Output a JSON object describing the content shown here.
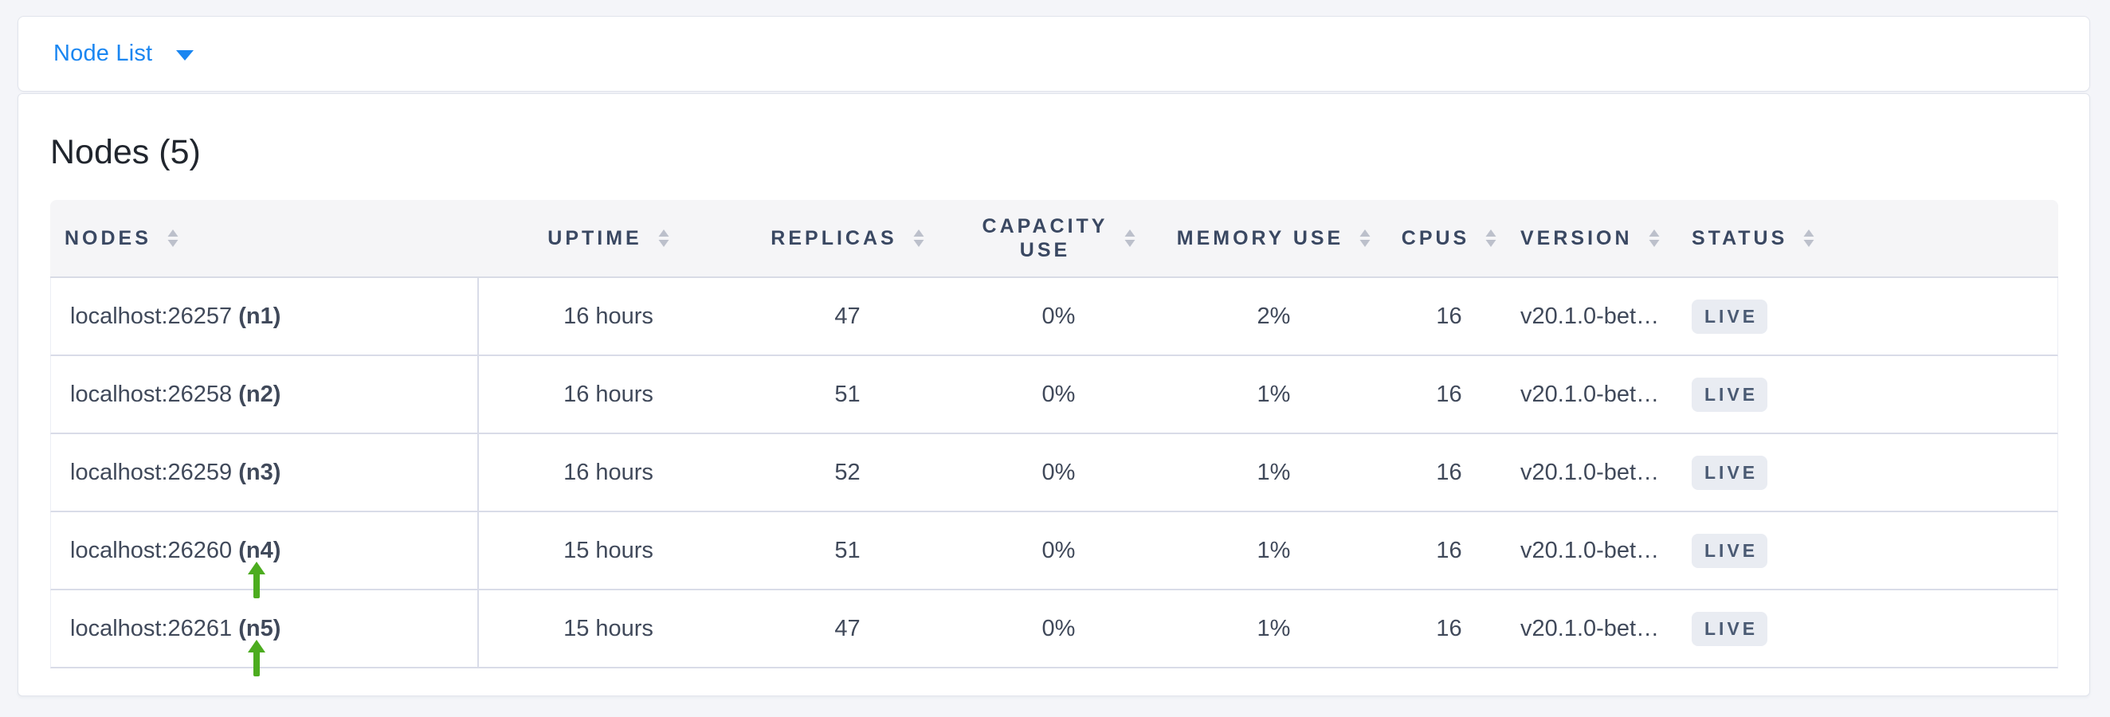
{
  "header": {
    "dropdown_label": "Node List"
  },
  "panel": {
    "title": "Nodes (5)"
  },
  "table": {
    "columns": [
      {
        "key": "nodes",
        "label": "NODES",
        "align": "left"
      },
      {
        "key": "uptime",
        "label": "UPTIME",
        "align": "center"
      },
      {
        "key": "replicas",
        "label": "REPLICAS",
        "align": "center"
      },
      {
        "key": "capacity_use",
        "label": "CAPACITY USE",
        "align": "center"
      },
      {
        "key": "memory_use",
        "label": "MEMORY USE",
        "align": "center"
      },
      {
        "key": "cpus",
        "label": "CPUS",
        "align": "center"
      },
      {
        "key": "version",
        "label": "VERSION",
        "align": "left"
      },
      {
        "key": "status",
        "label": "STATUS",
        "align": "left"
      }
    ],
    "rows": [
      {
        "address": "localhost:26257",
        "name": "(n1)",
        "uptime": "16 hours",
        "replicas": "47",
        "capacity_use": "0%",
        "memory_use": "2%",
        "cpus": "16",
        "version": "v20.1.0-bet…",
        "status": "LIVE",
        "arrow": false
      },
      {
        "address": "localhost:26258",
        "name": "(n2)",
        "uptime": "16 hours",
        "replicas": "51",
        "capacity_use": "0%",
        "memory_use": "1%",
        "cpus": "16",
        "version": "v20.1.0-bet…",
        "status": "LIVE",
        "arrow": false
      },
      {
        "address": "localhost:26259",
        "name": "(n3)",
        "uptime": "16 hours",
        "replicas": "52",
        "capacity_use": "0%",
        "memory_use": "1%",
        "cpus": "16",
        "version": "v20.1.0-bet…",
        "status": "LIVE",
        "arrow": false
      },
      {
        "address": "localhost:26260",
        "name": "(n4)",
        "uptime": "15 hours",
        "replicas": "51",
        "capacity_use": "0%",
        "memory_use": "1%",
        "cpus": "16",
        "version": "v20.1.0-bet…",
        "status": "LIVE",
        "arrow": true
      },
      {
        "address": "localhost:26261",
        "name": "(n5)",
        "uptime": "15 hours",
        "replicas": "47",
        "capacity_use": "0%",
        "memory_use": "1%",
        "cpus": "16",
        "version": "v20.1.0-bet…",
        "status": "LIVE",
        "arrow": true
      }
    ]
  },
  "icons": {
    "dropdown_caret": "chevron-down-icon",
    "column_sort": "sort-icon",
    "row_pointer": "green-up-arrow-icon"
  },
  "colors": {
    "accent_blue": "#1a86f1",
    "arrow_green": "#4cac1f",
    "badge_background": "#e9ecf2",
    "badge_text": "#4a5a73",
    "header_text": "#3a4862",
    "cell_text": "#40495a",
    "page_background": "#f4f5f9"
  }
}
